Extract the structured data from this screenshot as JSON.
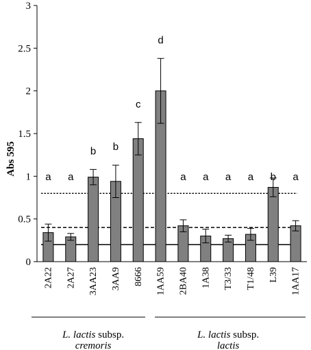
{
  "chart_data": {
    "type": "bar",
    "ylabel": "Abs 595",
    "ylim": [
      0,
      3
    ],
    "yticks": [
      "0",
      "0.5",
      "1",
      "1.5",
      "2",
      "2.5",
      "3"
    ],
    "categories": [
      "2A22",
      "2A27",
      "3AA23",
      "3AA9",
      "8666",
      "1AA59",
      "2BA40",
      "1A38",
      "T3/33",
      "T1/48",
      "L39",
      "1AA17"
    ],
    "values": [
      0.34,
      0.29,
      0.99,
      0.94,
      1.44,
      2.0,
      0.42,
      0.3,
      0.27,
      0.32,
      0.87,
      0.42
    ],
    "errors": [
      0.1,
      0.04,
      0.09,
      0.19,
      0.19,
      0.38,
      0.07,
      0.08,
      0.04,
      0.07,
      0.11,
      0.06
    ],
    "letters": [
      "a",
      "a",
      "b",
      "b",
      "c",
      "d",
      "a",
      "a",
      "a",
      "a",
      "b",
      "a"
    ],
    "bar_color": "#808080",
    "reference_lines": [
      {
        "value": 0.2,
        "style": "solid"
      },
      {
        "value": 0.4,
        "style": "dashed"
      },
      {
        "value": 0.8,
        "style": "dotted"
      }
    ],
    "groups": [
      {
        "line1": "L. lactis subsp.",
        "line2": "cremoris",
        "range": [
          0,
          4
        ]
      },
      {
        "line1": "L. lactis subsp.",
        "line2": "lactis",
        "range": [
          5,
          11
        ]
      }
    ]
  }
}
